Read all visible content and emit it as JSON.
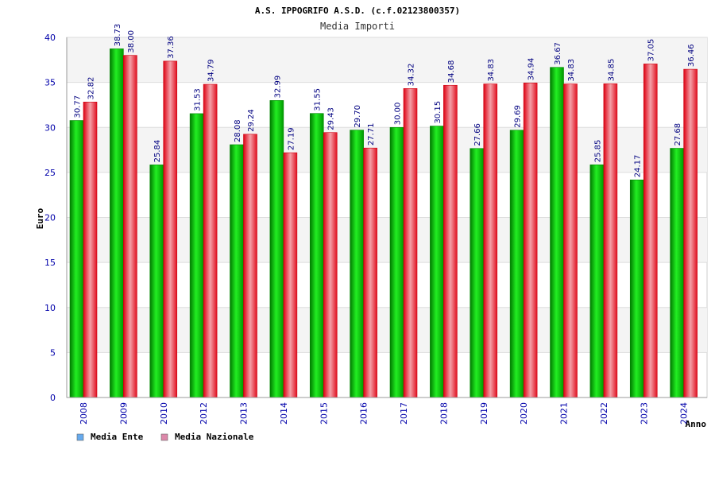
{
  "chart_data": {
    "type": "bar",
    "title": "A.S. IPPOGRIFO A.S.D. (c.f.02123800357)",
    "subtitle": "Media Importi",
    "xlabel": "Anno",
    "ylabel": "Euro",
    "ylim": [
      0,
      40
    ],
    "yticks": [
      0,
      5,
      10,
      15,
      20,
      25,
      30,
      35,
      40
    ],
    "grid": true,
    "legend_position": "bottom-left",
    "categories": [
      "2008",
      "2009",
      "2010",
      "2012",
      "2013",
      "2014",
      "2015",
      "2016",
      "2017",
      "2018",
      "2019",
      "2020",
      "2021",
      "2022",
      "2023",
      "2024"
    ],
    "series": [
      {
        "name": "Media Ente",
        "legend_color": "#66aaee",
        "color": "#00cc00",
        "values": [
          30.77,
          38.73,
          25.84,
          31.53,
          28.08,
          32.99,
          31.55,
          29.7,
          30.0,
          30.15,
          27.66,
          29.69,
          36.67,
          25.85,
          24.17,
          27.68
        ],
        "labels": [
          "30.77",
          "38.73",
          "25.84",
          "31.53",
          "28.08",
          "32.99",
          "31.55",
          "29.70",
          "30.00",
          "30.15",
          "27.66",
          "29.69",
          "36.67",
          "25.85",
          "24.17",
          "27.68"
        ]
      },
      {
        "name": "Media Nazionale",
        "legend_color": "#dd88aa",
        "color": "#ee2233",
        "values": [
          32.82,
          38.0,
          37.36,
          34.79,
          29.24,
          27.19,
          29.43,
          27.71,
          34.32,
          34.68,
          34.83,
          34.94,
          34.83,
          34.85,
          37.05,
          36.46
        ],
        "labels": [
          "32.82",
          "38.00",
          "37.36",
          "34.79",
          "29.24",
          "27.19",
          "29.43",
          "27.71",
          "34.32",
          "34.68",
          "34.83",
          "34.94",
          "34.83",
          "34.85",
          "37.05",
          "36.46"
        ]
      }
    ]
  }
}
